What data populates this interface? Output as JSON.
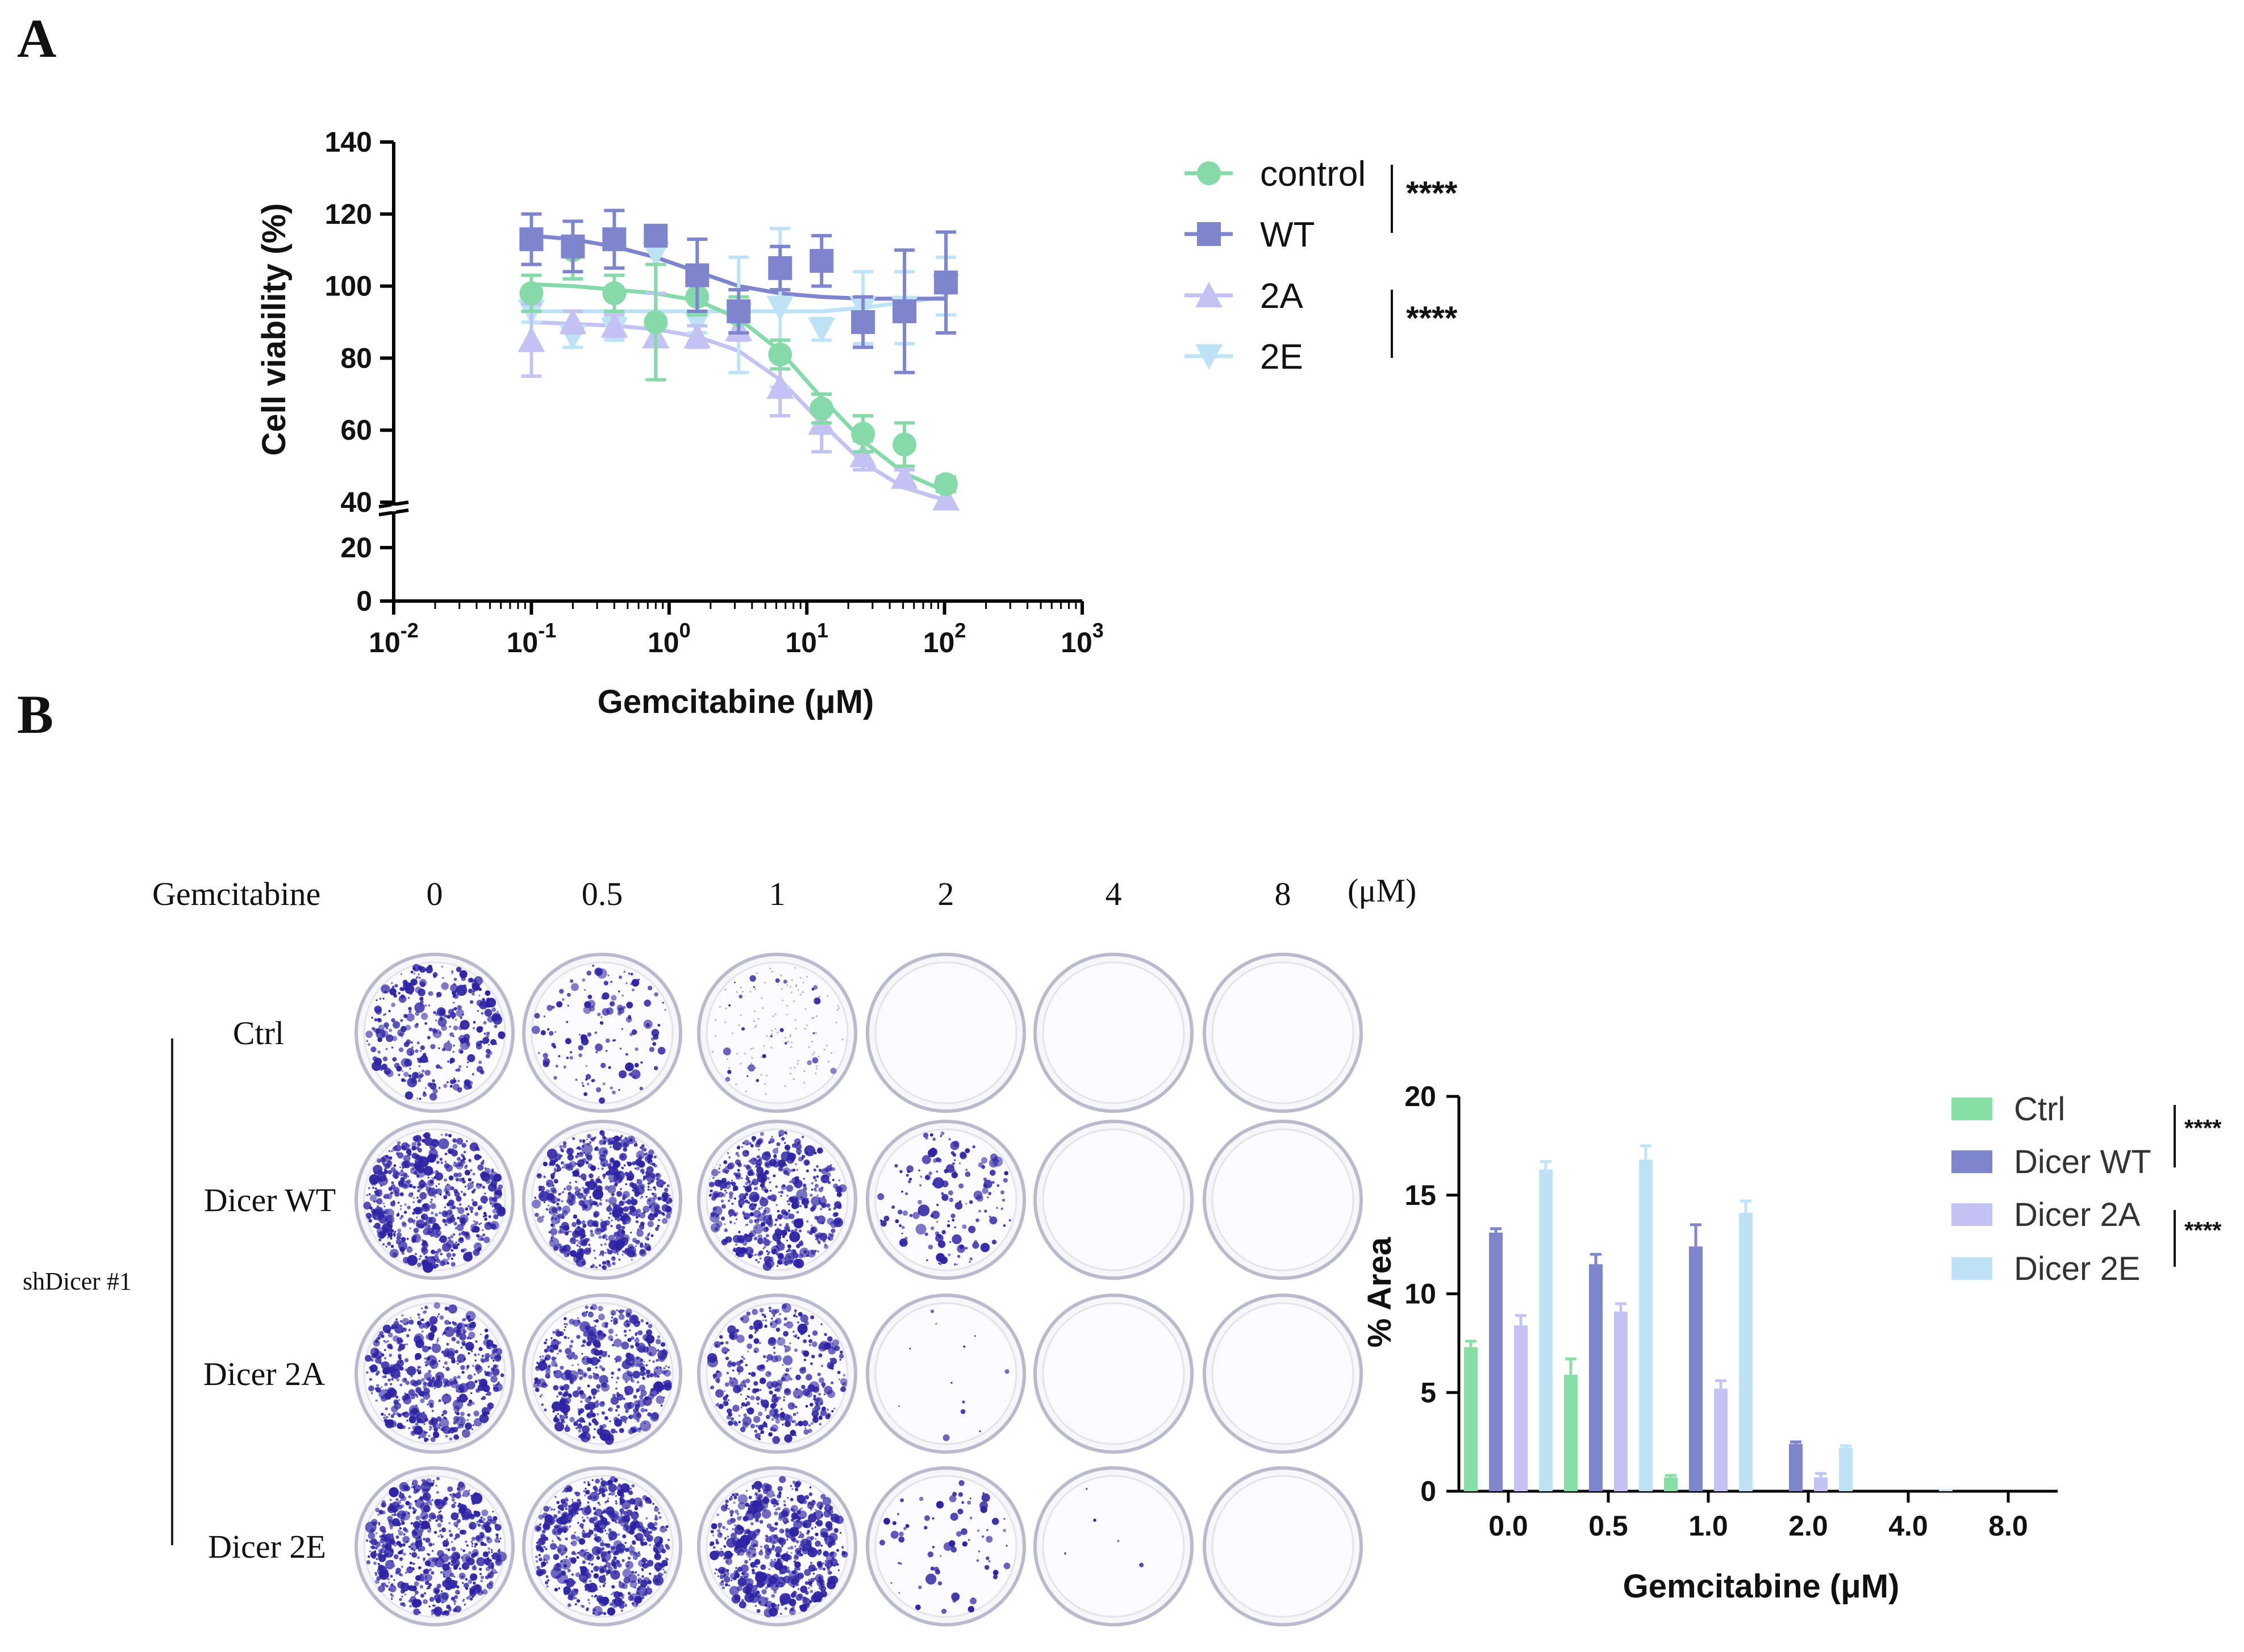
{
  "panel_a_label": "A",
  "panel_b_label": "B",
  "chart_data": [
    {
      "type": "scatter",
      "title": "",
      "xlabel": "Gemcitabine (μM)",
      "ylabel": "Cell viability (%)",
      "xscale": "log",
      "xlim": [
        0.01,
        1000
      ],
      "ylim": [
        0,
        140
      ],
      "y_axis_break": [
        20,
        40
      ],
      "xtick_labels": [
        {
          "base": "10",
          "exp": "-2"
        },
        {
          "base": "10",
          "exp": "-1"
        },
        {
          "base": "10",
          "exp": "0"
        },
        {
          "base": "10",
          "exp": "1"
        },
        {
          "base": "10",
          "exp": "2"
        },
        {
          "base": "10",
          "exp": "3"
        }
      ],
      "yticks": [
        0,
        20,
        40,
        60,
        80,
        100,
        120,
        140
      ],
      "x": [
        0.1,
        0.2,
        0.4,
        0.8,
        1.6,
        3.2,
        6.4,
        12.8,
        25.6,
        51.2,
        102.4
      ],
      "series": [
        {
          "name": "control",
          "color": "#86d9a8",
          "marker": "circle",
          "values": [
            98,
            110,
            98,
            90,
            97,
            92,
            81,
            66,
            59,
            56,
            45
          ],
          "errors": [
            5,
            8,
            5,
            16,
            5,
            5,
            4,
            4,
            5,
            6,
            2
          ],
          "fit": [
            100.5,
            100,
            99,
            98,
            96,
            91,
            82,
            69,
            57,
            48,
            43
          ]
        },
        {
          "name": "WT",
          "color": "#7f85cc",
          "marker": "square",
          "values": [
            113,
            111,
            113,
            114,
            103,
            93,
            105,
            107,
            90,
            93,
            101
          ],
          "errors": [
            7,
            7,
            8,
            2,
            10,
            6,
            6,
            7,
            7,
            17,
            14
          ],
          "fit": [
            114,
            113,
            111,
            108,
            104,
            100,
            98,
            97,
            96.5,
            96.5,
            96.5
          ]
        },
        {
          "name": "2A",
          "color": "#c3c3f3",
          "marker": "triangle-up",
          "values": [
            85,
            90,
            89,
            86,
            86,
            88,
            72,
            62,
            53,
            47,
            41
          ],
          "errors": [
            10,
            3,
            3,
            12,
            3,
            3,
            8,
            8,
            4,
            2,
            2
          ],
          "fit": [
            90,
            89.5,
            89,
            88,
            86,
            82,
            74,
            62,
            51,
            44,
            40.5
          ]
        },
        {
          "name": "2E",
          "color": "#bfe3f6",
          "marker": "triangle-down",
          "values": [
            93,
            86,
            88,
            109,
            90,
            92,
            94,
            88,
            94,
            94,
            100
          ],
          "errors": [
            3,
            3,
            3,
            3,
            3,
            16,
            22,
            3,
            10,
            10,
            8
          ],
          "fit": [
            93,
            93,
            93,
            93,
            93,
            93,
            93,
            93,
            94,
            95.5,
            97
          ]
        }
      ],
      "significance": [
        {
          "groups": [
            "control",
            "WT"
          ],
          "label": "****"
        },
        {
          "groups": [
            "2A",
            "2E"
          ],
          "label": "****"
        }
      ]
    },
    {
      "type": "bar",
      "title": "",
      "xlabel": "Gemcitabine (μM)",
      "ylabel": "% Area",
      "ylim": [
        0,
        20
      ],
      "yticks": [
        0,
        5,
        10,
        15,
        20
      ],
      "categories": [
        "0.0",
        "0.5",
        "1.0",
        "2.0",
        "4.0",
        "8.0"
      ],
      "series": [
        {
          "name": "Ctrl",
          "color": "#86e0a6",
          "values": [
            7.3,
            5.9,
            0.7,
            0.0,
            0.0,
            0.0
          ],
          "errors": [
            0.3,
            0.8,
            0.1,
            0,
            0,
            0
          ]
        },
        {
          "name": "Dicer WT",
          "color": "#7f85cc",
          "values": [
            13.1,
            11.5,
            12.4,
            2.4,
            0.0,
            0.0
          ],
          "errors": [
            0.2,
            0.5,
            1.1,
            0.1,
            0,
            0
          ]
        },
        {
          "name": "Dicer 2A",
          "color": "#c3c3f3",
          "values": [
            8.4,
            9.1,
            5.2,
            0.7,
            0.0,
            0.0
          ],
          "errors": [
            0.5,
            0.4,
            0.4,
            0.2,
            0,
            0
          ]
        },
        {
          "name": "Dicer 2E",
          "color": "#bfe3f6",
          "values": [
            16.3,
            16.8,
            14.1,
            2.2,
            0.1,
            0.0
          ],
          "errors": [
            0.4,
            0.7,
            0.6,
            0.1,
            0,
            0
          ]
        }
      ],
      "significance": [
        {
          "groups": [
            "Ctrl",
            "Dicer WT"
          ],
          "label": "****"
        },
        {
          "groups": [
            "Dicer 2A",
            "Dicer 2E"
          ],
          "label": "****"
        }
      ]
    }
  ],
  "plates": {
    "header_label": "Gemcitabine",
    "concentrations": [
      "0",
      "0.5",
      "1",
      "2",
      "4",
      "8"
    ],
    "unit": "(μM)",
    "group_label": "shDicer #1",
    "rows": [
      {
        "label": "Ctrl",
        "density": [
          0.55,
          0.22,
          0.04,
          0,
          0,
          0
        ]
      },
      {
        "label": "Dicer WT",
        "density": [
          0.95,
          1.0,
          0.85,
          0.25,
          0,
          0
        ]
      },
      {
        "label": "Dicer 2A",
        "density": [
          0.85,
          0.8,
          0.6,
          0.02,
          0,
          0
        ]
      },
      {
        "label": "Dicer 2E",
        "density": [
          1.0,
          1.0,
          1.0,
          0.12,
          0.01,
          0
        ]
      }
    ],
    "colony_color": "#2d23a3"
  }
}
